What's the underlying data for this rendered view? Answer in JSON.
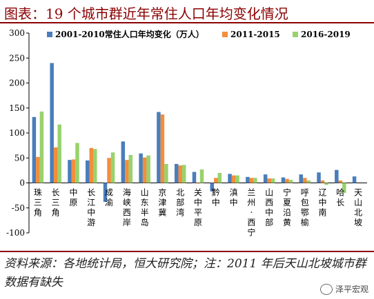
{
  "title": "图表：19 个城市群近年常住人口年均变化情况",
  "source_note": "资料来源：各地统计局，恒大研究院；注：2011 年后天山北坡城市群数据有缺失",
  "watermark": "泽平宏观",
  "colors": {
    "title": "#8b0000",
    "s1": "#4a7ebb",
    "s2": "#f28e3c",
    "s3": "#99d26d"
  },
  "chart_data": {
    "type": "bar",
    "ylim": [
      -100,
      300
    ],
    "yticks": [
      -100,
      -50,
      0,
      50,
      100,
      150,
      200,
      250,
      300
    ],
    "legend_position": "top",
    "categories": [
      "珠三角",
      "长三角",
      "中原",
      "长江中游",
      "成渝",
      "海峡西岸",
      "山东半岛",
      "京津冀",
      "北部湾",
      "关中平原",
      "黔中",
      "滇中",
      "兰州-西宁",
      "山西中部",
      "宁夏沿黄",
      "呼包鄂榆",
      "辽中南",
      "哈长",
      "天山北坡"
    ],
    "series": [
      {
        "name": "2001-2010常住人口年均变化（万人）",
        "color": "#4a7ebb",
        "values": [
          132,
          240,
          46,
          45,
          -38,
          83,
          59,
          142,
          38,
          22,
          -17,
          18,
          12,
          17,
          11,
          17,
          21,
          26,
          13
        ]
      },
      {
        "name": "2011-2015",
        "color": "#f28e3c",
        "values": [
          52,
          71,
          47,
          70,
          50,
          46,
          51,
          137,
          35,
          0,
          10,
          15,
          10,
          9,
          8,
          10,
          5,
          5,
          null
        ]
      },
      {
        "name": "2016-2019",
        "color": "#99d26d",
        "values": [
          143,
          117,
          80,
          68,
          61,
          56,
          55,
          38,
          36,
          27,
          20,
          15,
          10,
          9,
          6,
          5,
          -4,
          -20,
          null
        ]
      }
    ]
  }
}
